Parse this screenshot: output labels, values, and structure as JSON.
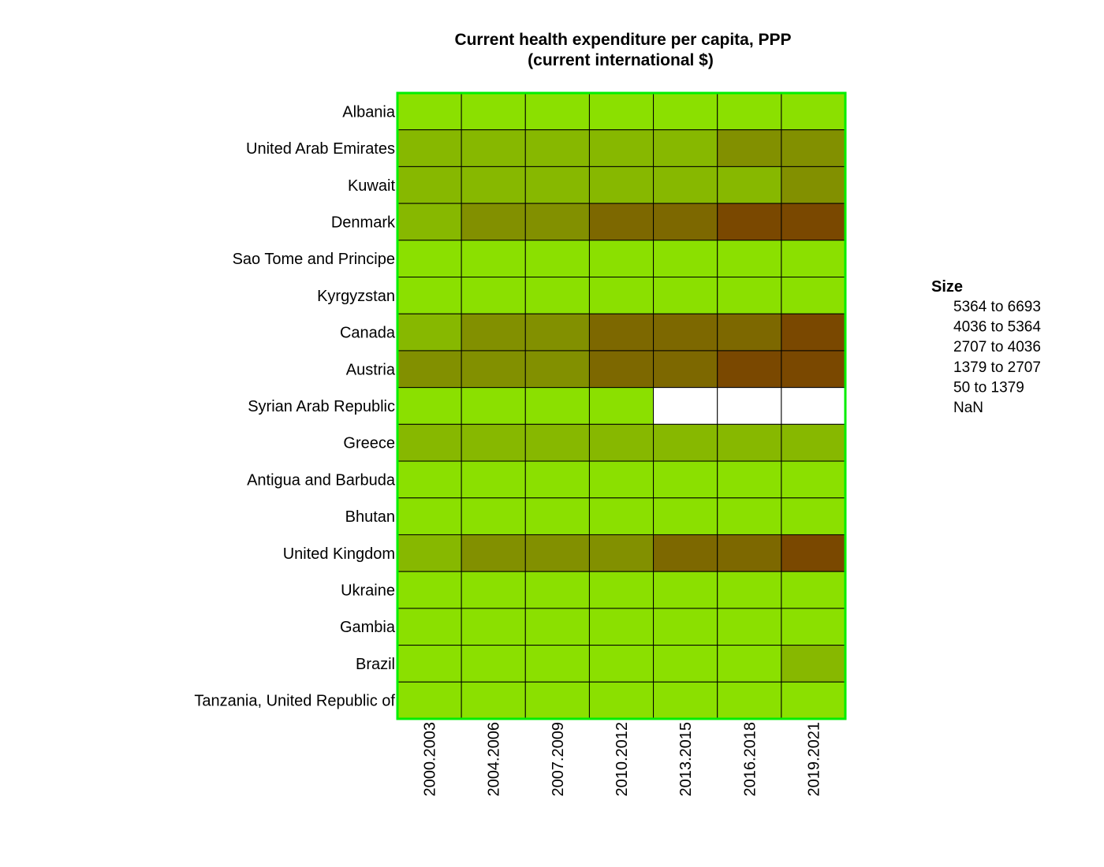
{
  "chart_data": {
    "type": "heatmap",
    "title": [
      "Current health expenditure per capita, PPP",
      "(current international $)"
    ],
    "columns": [
      "2000.2003",
      "2004.2006",
      "2007.2009",
      "2010.2012",
      "2013.2015",
      "2016.2018",
      "2019.2021"
    ],
    "rows": [
      "Albania",
      "United Arab Emirates",
      "Kuwait",
      "Denmark",
      "Sao Tome and Principe",
      "Kyrgyzstan",
      "Canada",
      "Austria",
      "Syrian Arab Republic",
      "Greece",
      "Antigua and Barbuda",
      "Bhutan",
      "United Kingdom",
      "Ukraine",
      "Gambia",
      "Brazil",
      "Tanzania, United Republic of"
    ],
    "bin_values": [
      [
        0,
        0,
        0,
        0,
        0,
        0,
        0
      ],
      [
        1,
        1,
        1,
        1,
        1,
        2,
        2
      ],
      [
        1,
        1,
        1,
        1,
        1,
        1,
        2
      ],
      [
        1,
        2,
        2,
        3,
        3,
        4,
        4
      ],
      [
        0,
        0,
        0,
        0,
        0,
        0,
        0
      ],
      [
        0,
        0,
        0,
        0,
        0,
        0,
        0
      ],
      [
        1,
        2,
        2,
        3,
        3,
        3,
        4
      ],
      [
        2,
        2,
        2,
        3,
        3,
        4,
        4
      ],
      [
        0,
        0,
        0,
        0,
        null,
        null,
        null
      ],
      [
        1,
        1,
        1,
        1,
        1,
        1,
        1
      ],
      [
        0,
        0,
        0,
        0,
        0,
        0,
        0
      ],
      [
        0,
        0,
        0,
        0,
        0,
        0,
        0
      ],
      [
        1,
        2,
        2,
        2,
        3,
        3,
        4
      ],
      [
        0,
        0,
        0,
        0,
        0,
        0,
        0
      ],
      [
        0,
        0,
        0,
        0,
        0,
        0,
        0
      ],
      [
        0,
        0,
        0,
        0,
        0,
        0,
        1
      ],
      [
        0,
        0,
        0,
        0,
        0,
        0,
        0
      ]
    ],
    "bins": [
      {
        "from": "50",
        "to": "1379",
        "color": "#8be000"
      },
      {
        "from": "1379",
        "to": "2707",
        "color": "#87b800"
      },
      {
        "from": "2707",
        "to": "4036",
        "color": "#829000"
      },
      {
        "from": "4036",
        "to": "5364",
        "color": "#7d6800"
      },
      {
        "from": "5364",
        "to": "6693",
        "color": "#7a4800"
      }
    ],
    "nan_color": "#ffffff",
    "frame_color": "#00ee00",
    "legend": {
      "title": "Size",
      "position": "right",
      "entries": [
        {
          "from": "5364",
          "sep": "to",
          "to": "6693"
        },
        {
          "from": "4036",
          "sep": "to",
          "to": "5364"
        },
        {
          "from": "2707",
          "sep": "to",
          "to": "4036"
        },
        {
          "from": "1379",
          "sep": "to",
          "to": "2707"
        },
        {
          "from": "50",
          "sep": "to",
          "to": "1379"
        }
      ],
      "nan_label": "NaN"
    }
  }
}
